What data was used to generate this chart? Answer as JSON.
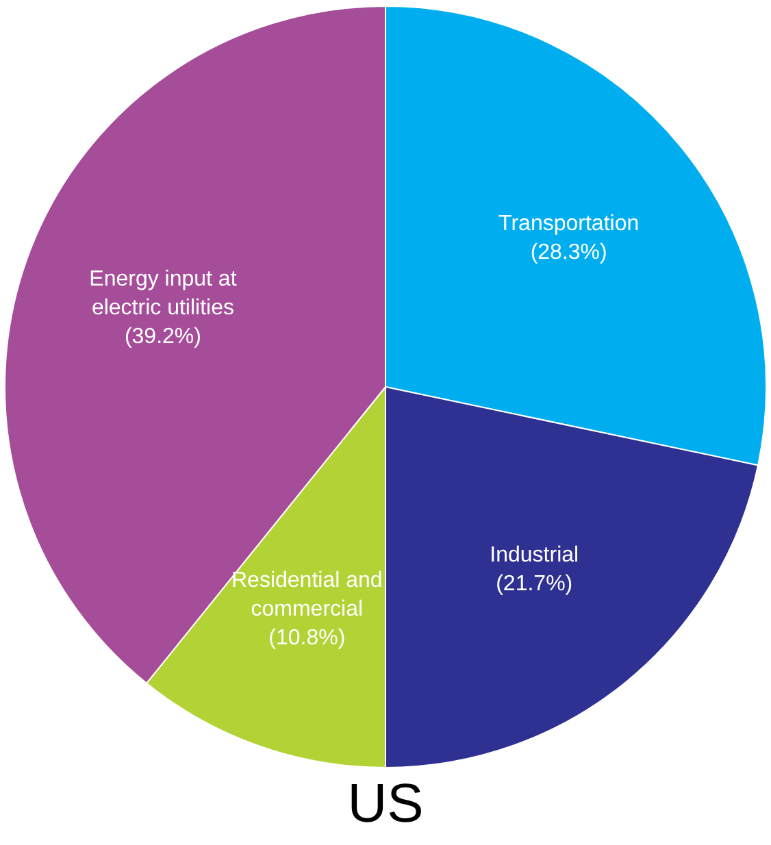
{
  "chart_data": {
    "type": "pie",
    "title": "US",
    "categories": [
      "Transportation",
      "Industrial",
      "Residential and commercial",
      "Energy input at electric utilities"
    ],
    "values": [
      28.3,
      21.7,
      10.8,
      39.2
    ],
    "colors": [
      "#00aeef",
      "#2e3192",
      "#b2d235",
      "#a64d9a"
    ],
    "value_labels": [
      "(28.3%)",
      "(21.7%)",
      "(10.8%)",
      "(39.2%)"
    ],
    "legend": false
  }
}
